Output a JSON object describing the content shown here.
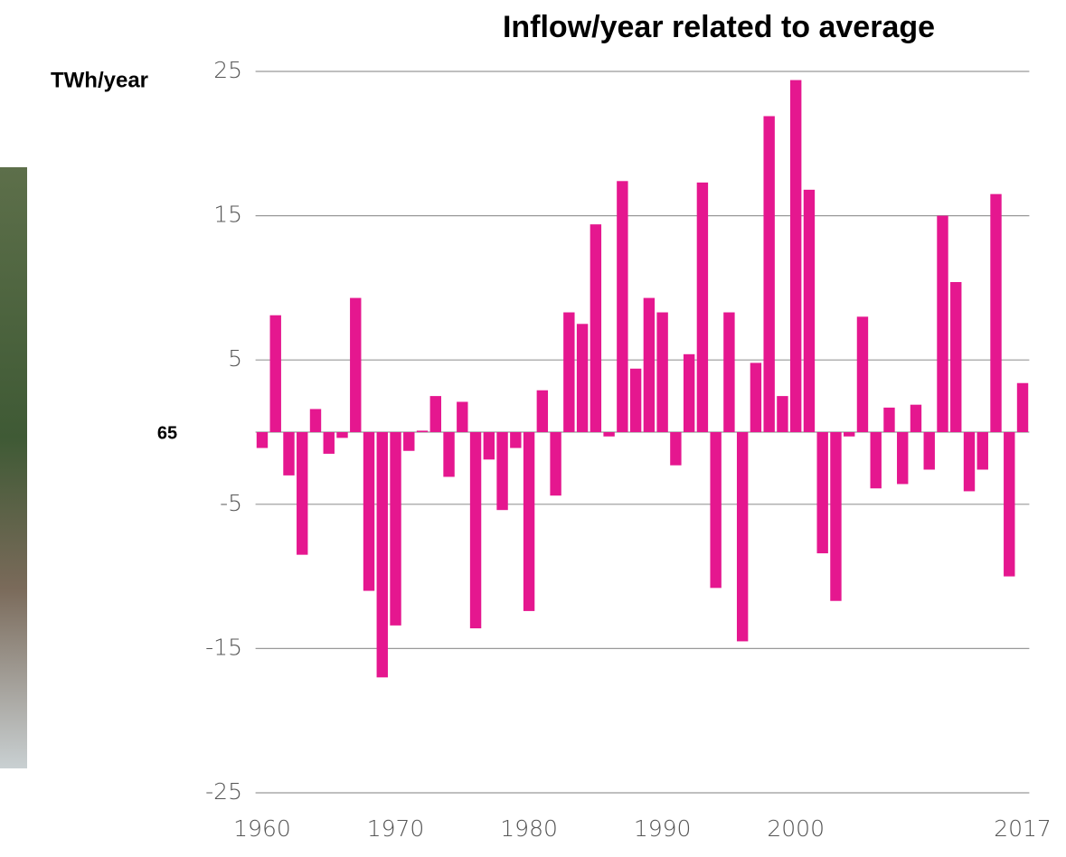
{
  "chart_data": {
    "type": "bar",
    "title": "Inflow/year related to average",
    "y_label": "TWh/year",
    "annotation": "65",
    "x": [
      1960,
      1961,
      1962,
      1963,
      1964,
      1965,
      1966,
      1967,
      1968,
      1969,
      1970,
      1971,
      1972,
      1973,
      1974,
      1975,
      1976,
      1977,
      1978,
      1979,
      1980,
      1981,
      1982,
      1983,
      1984,
      1985,
      1986,
      1987,
      1988,
      1989,
      1990,
      1991,
      1992,
      1993,
      1994,
      1995,
      1996,
      1997,
      1998,
      1999,
      2000,
      2001,
      2002,
      2003,
      2004,
      2005,
      2006,
      2007,
      2008,
      2009,
      2010,
      2011,
      2012,
      2013,
      2014,
      2015,
      2016,
      2017
    ],
    "values": [
      -1.1,
      8.1,
      -3.0,
      -8.5,
      1.6,
      -1.5,
      -0.4,
      9.3,
      -11.0,
      -17.0,
      -13.4,
      -1.3,
      0.1,
      2.5,
      -3.1,
      2.1,
      -13.6,
      -1.9,
      -5.4,
      -1.1,
      -12.4,
      2.9,
      -4.4,
      8.3,
      7.5,
      14.4,
      -0.3,
      17.4,
      4.4,
      9.3,
      8.3,
      -2.3,
      5.4,
      17.3,
      -10.8,
      8.3,
      -14.5,
      4.8,
      21.9,
      2.5,
      24.4,
      16.8,
      -8.4,
      -11.7,
      -0.3,
      8.0,
      -3.9,
      1.7,
      -3.6,
      1.9,
      -2.6,
      15.0,
      10.4,
      -4.1,
      -2.6,
      16.5,
      -10.0,
      3.4
    ],
    "color": "#e5178f",
    "xlim": [
      1959.5,
      2017.5
    ],
    "xticks": [
      1960,
      1970,
      1980,
      1990,
      2000,
      2017
    ],
    "ylim": [
      -25,
      25
    ],
    "yticks": [
      -25,
      -15,
      -5,
      5,
      15,
      25
    ],
    "grid": true
  }
}
